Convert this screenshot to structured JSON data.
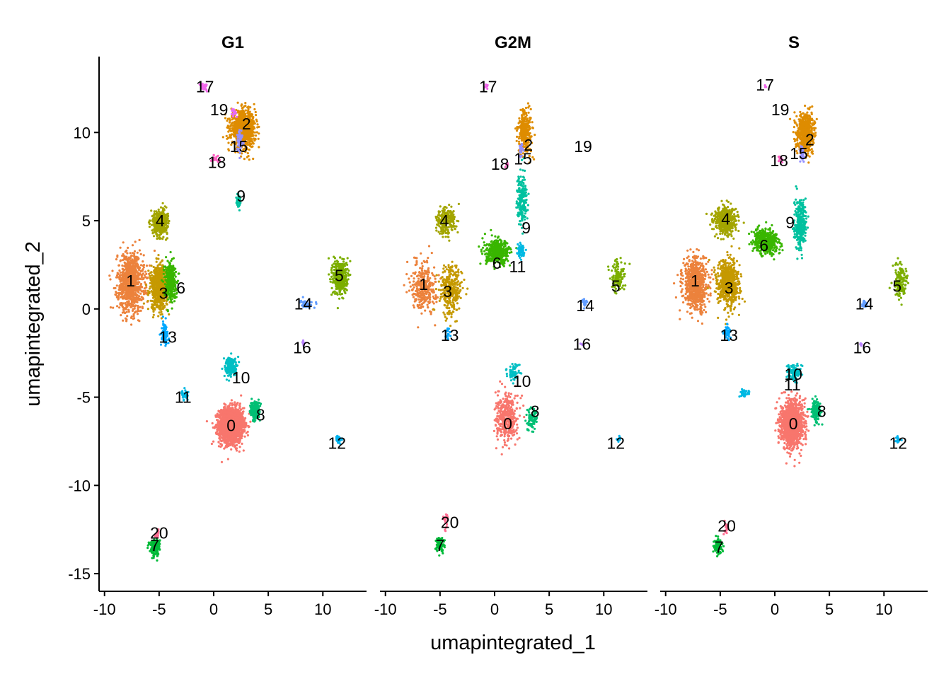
{
  "chart_data": {
    "type": "scatter",
    "facets": [
      "G1",
      "G2M",
      "S"
    ],
    "xlabel": "umapintegrated_1",
    "ylabel": "umapintegrated_2",
    "xlim": [
      -10.5,
      14
    ],
    "ylim": [
      -16,
      14.3
    ],
    "xticks": [
      -10,
      -5,
      0,
      5,
      10
    ],
    "xtick_labels": [
      "-10",
      "-5",
      "0",
      "5",
      "10"
    ],
    "yticks": [
      -15,
      -10,
      -5,
      0,
      5,
      10
    ],
    "ytick_labels": [
      "-15",
      "-10",
      "-5",
      "0",
      "5",
      "10"
    ],
    "grid": false,
    "legend": "none",
    "cluster_colors": {
      "0": "#F8766D",
      "1": "#EC823C",
      "2": "#DE8C00",
      "3": "#C59900",
      "4": "#A3A500",
      "5": "#7CAE00",
      "6": "#39B600",
      "7": "#00BA38",
      "8": "#00BF74",
      "9": "#00C19F",
      "10": "#00BFC4",
      "11": "#00B9E3",
      "12": "#00B4F0",
      "13": "#00A9FF",
      "14": "#619CFF",
      "15": "#9590FF",
      "16": "#B983FF",
      "17": "#F066EA",
      "18": "#FF61C3",
      "19": "#E76BF3",
      "20": "#FF6C91"
    },
    "panels": [
      {
        "name": "G1",
        "clusters": [
          {
            "id": "0",
            "x": 1.6,
            "y": -6.6,
            "sx": 1.0,
            "sy": 0.9,
            "n": 1800
          },
          {
            "id": "1",
            "x": -7.6,
            "y": 1.5,
            "sx": 1.1,
            "sy": 1.5,
            "n": 900
          },
          {
            "id": "2",
            "x": 2.7,
            "y": 10.2,
            "sx": 1.0,
            "sy": 0.9,
            "n": 900
          },
          {
            "id": "3",
            "x": -5.0,
            "y": 1.2,
            "sx": 0.7,
            "sy": 1.1,
            "n": 700
          },
          {
            "id": "4",
            "x": -4.9,
            "y": 4.9,
            "sx": 0.6,
            "sy": 0.6,
            "n": 500
          },
          {
            "id": "5",
            "x": 11.6,
            "y": 1.8,
            "sx": 0.6,
            "sy": 0.9,
            "n": 400
          },
          {
            "id": "6",
            "x": -4.0,
            "y": 1.6,
            "sx": 0.5,
            "sy": 1.0,
            "n": 300
          },
          {
            "id": "7",
            "x": -5.4,
            "y": -13.5,
            "sx": 0.4,
            "sy": 0.4,
            "n": 200
          },
          {
            "id": "8",
            "x": 3.8,
            "y": -5.8,
            "sx": 0.4,
            "sy": 0.5,
            "n": 200
          },
          {
            "id": "9",
            "x": 2.3,
            "y": 6.2,
            "sx": 0.2,
            "sy": 0.5,
            "n": 30
          },
          {
            "id": "10",
            "x": 1.6,
            "y": -3.3,
            "sx": 0.5,
            "sy": 0.5,
            "n": 200
          },
          {
            "id": "11",
            "x": -2.6,
            "y": -4.9,
            "sx": 0.3,
            "sy": 0.2,
            "n": 50
          },
          {
            "id": "12",
            "x": 11.4,
            "y": -7.4,
            "sx": 0.2,
            "sy": 0.2,
            "n": 40
          },
          {
            "id": "13",
            "x": -4.5,
            "y": -1.4,
            "sx": 0.3,
            "sy": 0.6,
            "n": 80
          },
          {
            "id": "14",
            "x": 8.5,
            "y": 0.3,
            "sx": 0.5,
            "sy": 0.2,
            "n": 50
          },
          {
            "id": "15",
            "x": 2.4,
            "y": 9.5,
            "sx": 0.2,
            "sy": 0.6,
            "n": 60
          },
          {
            "id": "16",
            "x": 8.2,
            "y": -1.9,
            "sx": 0.1,
            "sy": 0.2,
            "n": 10
          },
          {
            "id": "17",
            "x": -0.9,
            "y": 12.6,
            "sx": 0.3,
            "sy": 0.2,
            "n": 40
          },
          {
            "id": "18",
            "x": 0.2,
            "y": 8.5,
            "sx": 0.3,
            "sy": 0.2,
            "n": 20
          },
          {
            "id": "19",
            "x": 1.8,
            "y": 11.2,
            "sx": 0.2,
            "sy": 0.2,
            "n": 15
          },
          {
            "id": "20",
            "x": -5.2,
            "y": -12.8,
            "sx": 0.2,
            "sy": 0.2,
            "n": 15
          }
        ],
        "labels": [
          {
            "text": "0",
            "x": 1.6,
            "y": -6.6
          },
          {
            "text": "1",
            "x": -7.6,
            "y": 1.6
          },
          {
            "text": "2",
            "x": 3.0,
            "y": 10.5
          },
          {
            "text": "3",
            "x": -4.6,
            "y": 0.9
          },
          {
            "text": "4",
            "x": -4.9,
            "y": 5.0
          },
          {
            "text": "5",
            "x": 11.5,
            "y": 1.9
          },
          {
            "text": "6",
            "x": -3.0,
            "y": 1.2
          },
          {
            "text": "7",
            "x": -5.4,
            "y": -13.4
          },
          {
            "text": "8",
            "x": 4.3,
            "y": -6.0
          },
          {
            "text": "9",
            "x": 2.5,
            "y": 6.4
          },
          {
            "text": "10",
            "x": 2.5,
            "y": -3.9
          },
          {
            "text": "11",
            "x": -2.8,
            "y": -5.0
          },
          {
            "text": "12",
            "x": 11.3,
            "y": -7.6
          },
          {
            "text": "13",
            "x": -4.2,
            "y": -1.6
          },
          {
            "text": "14",
            "x": 8.2,
            "y": 0.3
          },
          {
            "text": "15",
            "x": 2.3,
            "y": 9.2
          },
          {
            "text": "16",
            "x": 8.1,
            "y": -2.2
          },
          {
            "text": "17",
            "x": -0.8,
            "y": 12.6
          },
          {
            "text": "18",
            "x": 0.3,
            "y": 8.3
          },
          {
            "text": "19",
            "x": 0.5,
            "y": 11.3
          },
          {
            "text": "20",
            "x": -5.0,
            "y": -12.7
          }
        ]
      },
      {
        "name": "G2M",
        "clusters": [
          {
            "id": "0",
            "x": 1.1,
            "y": -6.2,
            "sx": 0.9,
            "sy": 1.2,
            "n": 400
          },
          {
            "id": "1",
            "x": -6.5,
            "y": 1.3,
            "sx": 1.0,
            "sy": 1.3,
            "n": 300
          },
          {
            "id": "2",
            "x": 2.8,
            "y": 10.0,
            "sx": 0.6,
            "sy": 1.1,
            "n": 300
          },
          {
            "id": "3",
            "x": -4.0,
            "y": 1.1,
            "sx": 0.9,
            "sy": 1.3,
            "n": 300
          },
          {
            "id": "4",
            "x": -4.5,
            "y": 5.0,
            "sx": 0.8,
            "sy": 0.7,
            "n": 250
          },
          {
            "id": "5",
            "x": 11.3,
            "y": 1.8,
            "sx": 0.6,
            "sy": 0.8,
            "n": 120
          },
          {
            "id": "6",
            "x": 0.3,
            "y": 3.2,
            "sx": 1.0,
            "sy": 0.6,
            "n": 400
          },
          {
            "id": "7",
            "x": -5.0,
            "y": -13.3,
            "sx": 0.4,
            "sy": 0.4,
            "n": 70
          },
          {
            "id": "8",
            "x": 3.4,
            "y": -6.2,
            "sx": 0.5,
            "sy": 0.6,
            "n": 80
          },
          {
            "id": "9",
            "x": 2.5,
            "y": 6.2,
            "sx": 0.4,
            "sy": 1.3,
            "n": 200
          },
          {
            "id": "10",
            "x": 1.8,
            "y": -3.6,
            "sx": 0.6,
            "sy": 0.4,
            "n": 60
          },
          {
            "id": "11",
            "x": 2.4,
            "y": 3.3,
            "sx": 0.3,
            "sy": 0.4,
            "n": 60
          },
          {
            "id": "12",
            "x": 11.3,
            "y": -7.4,
            "sx": 0.2,
            "sy": 0.2,
            "n": 10
          },
          {
            "id": "13",
            "x": -4.3,
            "y": -1.4,
            "sx": 0.2,
            "sy": 0.3,
            "n": 20
          },
          {
            "id": "14",
            "x": 8.3,
            "y": 0.3,
            "sx": 0.3,
            "sy": 0.2,
            "n": 20
          },
          {
            "id": "15",
            "x": 2.4,
            "y": 9.0,
            "sx": 0.2,
            "sy": 0.3,
            "n": 20
          },
          {
            "id": "16",
            "x": 8.0,
            "y": -2.0,
            "sx": 0.1,
            "sy": 0.1,
            "n": 5
          },
          {
            "id": "17",
            "x": -0.8,
            "y": 12.6,
            "sx": 0.2,
            "sy": 0.2,
            "n": 10
          },
          {
            "id": "18",
            "x": 1.1,
            "y": 8.2,
            "sx": 0.2,
            "sy": 0.2,
            "n": 5
          },
          {
            "id": "20",
            "x": -4.5,
            "y": -11.9,
            "sx": 0.2,
            "sy": 0.4,
            "n": 20
          }
        ],
        "labels": [
          {
            "text": "0",
            "x": 1.2,
            "y": -6.5
          },
          {
            "text": "1",
            "x": -6.5,
            "y": 1.4
          },
          {
            "text": "2",
            "x": 3.1,
            "y": 9.3
          },
          {
            "text": "3",
            "x": -4.3,
            "y": 1.0
          },
          {
            "text": "4",
            "x": -4.6,
            "y": 5.0
          },
          {
            "text": "5",
            "x": 11.1,
            "y": 1.3
          },
          {
            "text": "6",
            "x": 0.2,
            "y": 2.6
          },
          {
            "text": "7",
            "x": -5.0,
            "y": -13.4
          },
          {
            "text": "8",
            "x": 3.7,
            "y": -5.8
          },
          {
            "text": "9",
            "x": 2.9,
            "y": 4.6
          },
          {
            "text": "10",
            "x": 2.5,
            "y": -4.1
          },
          {
            "text": "11",
            "x": 2.1,
            "y": 2.4
          },
          {
            "text": "12",
            "x": 11.1,
            "y": -7.6
          },
          {
            "text": "13",
            "x": -4.1,
            "y": -1.5
          },
          {
            "text": "14",
            "x": 8.3,
            "y": 0.2
          },
          {
            "text": "15",
            "x": 2.6,
            "y": 8.5
          },
          {
            "text": "16",
            "x": 8.0,
            "y": -2.0
          },
          {
            "text": "17",
            "x": -0.6,
            "y": 12.6
          },
          {
            "text": "18",
            "x": 0.5,
            "y": 8.2
          },
          {
            "text": "19",
            "x": 8.1,
            "y": 9.2
          },
          {
            "text": "20",
            "x": -4.1,
            "y": -12.1
          }
        ]
      },
      {
        "name": "S",
        "clusters": [
          {
            "id": "0",
            "x": 1.6,
            "y": -6.5,
            "sx": 0.9,
            "sy": 1.1,
            "n": 1400
          },
          {
            "id": "1",
            "x": -7.3,
            "y": 1.4,
            "sx": 1.0,
            "sy": 1.3,
            "n": 700
          },
          {
            "id": "2",
            "x": 2.8,
            "y": 10.0,
            "sx": 0.7,
            "sy": 1.0,
            "n": 600
          },
          {
            "id": "3",
            "x": -4.3,
            "y": 1.4,
            "sx": 0.9,
            "sy": 1.2,
            "n": 700
          },
          {
            "id": "4",
            "x": -4.5,
            "y": 5.0,
            "sx": 0.9,
            "sy": 0.7,
            "n": 500
          },
          {
            "id": "5",
            "x": 11.5,
            "y": 1.6,
            "sx": 0.6,
            "sy": 0.9,
            "n": 150
          },
          {
            "id": "6",
            "x": -0.8,
            "y": 3.8,
            "sx": 1.0,
            "sy": 0.6,
            "n": 500
          },
          {
            "id": "7",
            "x": -5.2,
            "y": -13.4,
            "sx": 0.4,
            "sy": 0.4,
            "n": 100
          },
          {
            "id": "8",
            "x": 3.8,
            "y": -5.8,
            "sx": 0.4,
            "sy": 0.5,
            "n": 150
          },
          {
            "id": "9",
            "x": 2.3,
            "y": 4.8,
            "sx": 0.5,
            "sy": 1.2,
            "n": 300
          },
          {
            "id": "10",
            "x": 1.8,
            "y": -3.6,
            "sx": 0.5,
            "sy": 0.4,
            "n": 100
          },
          {
            "id": "11",
            "x": -2.8,
            "y": -4.8,
            "sx": 0.3,
            "sy": 0.2,
            "n": 40
          },
          {
            "id": "12",
            "x": 11.3,
            "y": -7.4,
            "sx": 0.2,
            "sy": 0.2,
            "n": 20
          },
          {
            "id": "13",
            "x": -4.4,
            "y": -1.3,
            "sx": 0.3,
            "sy": 0.4,
            "n": 40
          },
          {
            "id": "14",
            "x": 8.2,
            "y": 0.3,
            "sx": 0.3,
            "sy": 0.2,
            "n": 20
          },
          {
            "id": "15",
            "x": 2.5,
            "y": 8.8,
            "sx": 0.2,
            "sy": 0.4,
            "n": 30
          },
          {
            "id": "16",
            "x": 7.9,
            "y": -2.0,
            "sx": 0.1,
            "sy": 0.1,
            "n": 8
          },
          {
            "id": "17",
            "x": -0.9,
            "y": 12.6,
            "sx": 0.1,
            "sy": 0.1,
            "n": 3
          },
          {
            "id": "18",
            "x": 0.5,
            "y": 8.5,
            "sx": 0.2,
            "sy": 0.2,
            "n": 15
          },
          {
            "id": "20",
            "x": -4.5,
            "y": -12.4,
            "sx": 0.2,
            "sy": 0.4,
            "n": 20
          }
        ],
        "labels": [
          {
            "text": "0",
            "x": 1.7,
            "y": -6.5
          },
          {
            "text": "1",
            "x": -7.3,
            "y": 1.6
          },
          {
            "text": "2",
            "x": 3.2,
            "y": 9.6
          },
          {
            "text": "3",
            "x": -4.2,
            "y": 1.2
          },
          {
            "text": "4",
            "x": -4.5,
            "y": 5.1
          },
          {
            "text": "5",
            "x": 11.2,
            "y": 1.3
          },
          {
            "text": "6",
            "x": -1.0,
            "y": 3.6
          },
          {
            "text": "7",
            "x": -5.1,
            "y": -13.5
          },
          {
            "text": "8",
            "x": 4.3,
            "y": -5.8
          },
          {
            "text": "9",
            "x": 1.4,
            "y": 4.9
          },
          {
            "text": "10",
            "x": 1.7,
            "y": -3.7
          },
          {
            "text": "11",
            "x": 1.6,
            "y": -4.3
          },
          {
            "text": "12",
            "x": 11.3,
            "y": -7.6
          },
          {
            "text": "13",
            "x": -4.2,
            "y": -1.5
          },
          {
            "text": "14",
            "x": 8.2,
            "y": 0.3
          },
          {
            "text": "15",
            "x": 2.2,
            "y": 8.8
          },
          {
            "text": "16",
            "x": 8.0,
            "y": -2.2
          },
          {
            "text": "17",
            "x": -0.9,
            "y": 12.7
          },
          {
            "text": "18",
            "x": 0.4,
            "y": 8.4
          },
          {
            "text": "19",
            "x": 0.5,
            "y": 11.3
          },
          {
            "text": "20",
            "x": -4.4,
            "y": -12.3
          }
        ]
      }
    ]
  }
}
